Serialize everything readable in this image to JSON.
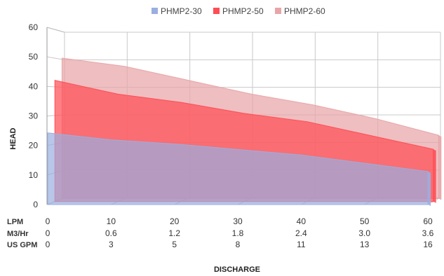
{
  "chart_data": {
    "type": "area",
    "ylabel": "HEAD",
    "xlabel": "DISCHARGE",
    "ylim": [
      0,
      60
    ],
    "yticks": [
      0,
      10,
      20,
      30,
      40,
      50,
      60
    ],
    "xlim": [
      0,
      60
    ],
    "grid": true,
    "legend_position": "top",
    "x_scales": [
      {
        "label": "LPM",
        "ticks": [
          "0",
          "10",
          "20",
          "30",
          "40",
          "50",
          "60"
        ]
      },
      {
        "label": "M3/Hr",
        "ticks": [
          "0",
          "0.6",
          "1.2",
          "1.8",
          "2.4",
          "3.0",
          "3.6"
        ]
      },
      {
        "label": "US GPM",
        "ticks": [
          "0",
          "3",
          "5",
          "8",
          "11",
          "13",
          "16"
        ]
      }
    ],
    "series": [
      {
        "name": "PHMP2-60",
        "color": "#e8a5a8",
        "x": [
          0,
          10,
          20,
          30,
          40,
          50,
          60
        ],
        "y": [
          51,
          48,
          43,
          38,
          34,
          29,
          23
        ]
      },
      {
        "name": "PHMP2-50",
        "color": "#ff4d55",
        "x": [
          0,
          10,
          20,
          30,
          40,
          50,
          60
        ],
        "y": [
          44,
          39,
          36,
          32,
          29,
          24,
          19
        ]
      },
      {
        "name": "PHMP2-30",
        "color": "#9aaee0",
        "x": [
          0,
          10,
          20,
          30,
          40,
          50,
          60
        ],
        "y": [
          26,
          23.5,
          22,
          20,
          18,
          15,
          12
        ]
      }
    ],
    "legend": [
      "PHMP2-30",
      "PHMP2-50",
      "PHMP2-60"
    ]
  }
}
